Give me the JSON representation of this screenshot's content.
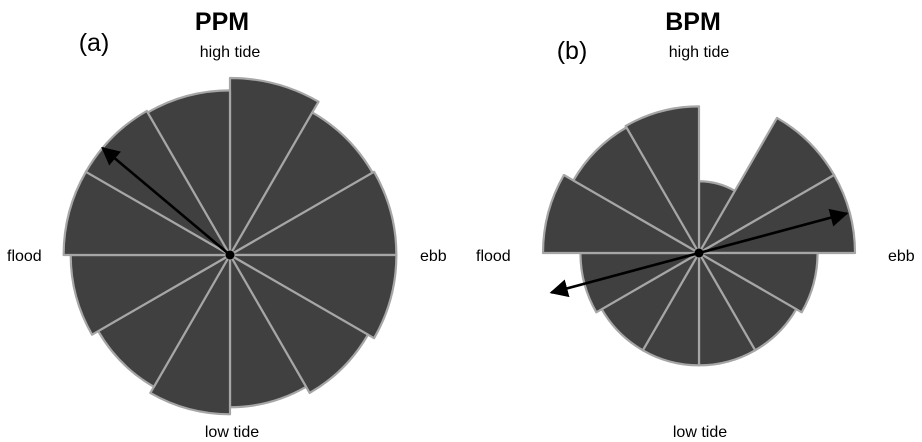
{
  "chart_data": [
    {
      "type": "rose",
      "title": "PPM",
      "panel_label": "(a)",
      "direction_labels": {
        "top": "high tide",
        "right": "ebb",
        "bottom": "low tide",
        "left": "flood"
      },
      "sectors": 12,
      "radii": [
        1.0,
        0.93,
        0.94,
        0.94,
        0.9,
        0.86,
        0.9,
        0.86,
        0.9,
        0.94,
        0.94,
        0.93
      ],
      "arrow_angle_deg": -50,
      "arrow_length": 0.94,
      "colors": {
        "sector_fill": "#404040",
        "sector_edge": "#a6a6a6",
        "arrow": "#000000"
      }
    },
    {
      "type": "rose",
      "title": "BPM",
      "panel_label": "(b)",
      "direction_labels": {
        "top": "high tide",
        "right": "ebb",
        "bottom": "low tide",
        "left": "flood"
      },
      "sectors": 12,
      "radii": [
        0.46,
        1.0,
        1.0,
        0.76,
        0.72,
        0.72,
        0.72,
        0.72,
        0.76,
        1.0,
        0.93,
        0.94
      ],
      "arrow_angle_deg": 75,
      "arrow_length": 0.98,
      "colors": {
        "sector_fill": "#404040",
        "sector_edge": "#a6a6a6",
        "arrow": "#000000"
      }
    }
  ]
}
